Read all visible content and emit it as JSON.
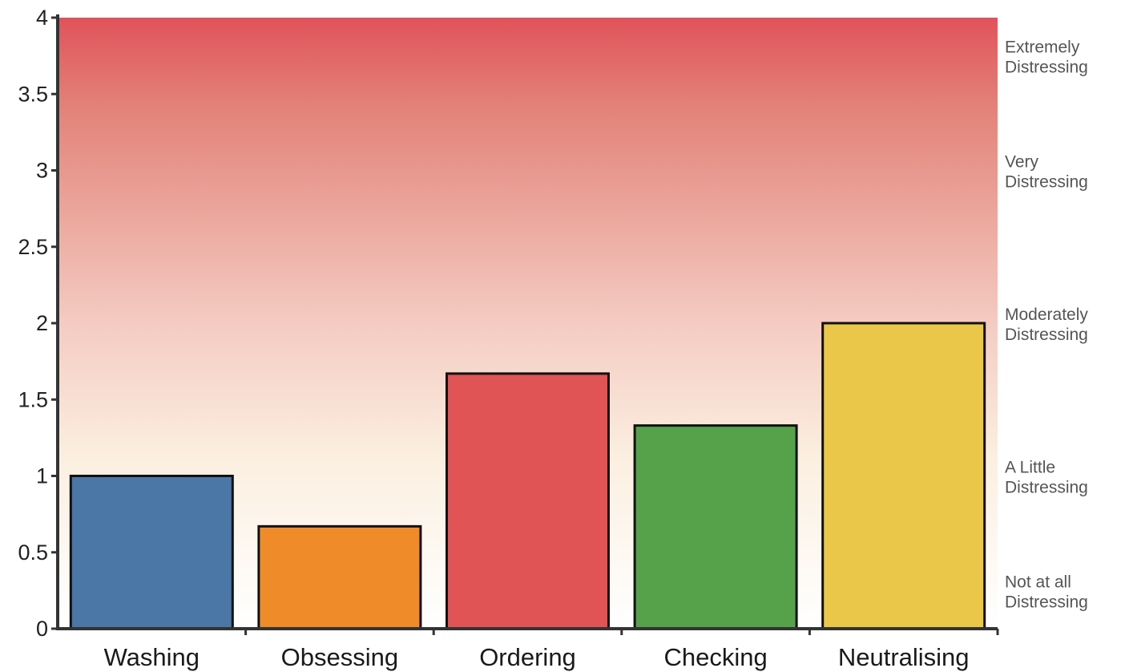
{
  "chart_data": {
    "type": "bar",
    "categories": [
      "Washing",
      "Obsessing",
      "Ordering",
      "Checking",
      "Neutralising"
    ],
    "values": [
      1,
      0.67,
      1.67,
      1.33,
      2
    ],
    "bar_colors": [
      "#4a77a6",
      "#ef8c29",
      "#e05455",
      "#55a24b",
      "#eac748"
    ],
    "ylim": [
      0,
      4
    ],
    "yticks": [
      "0",
      "0.5",
      "1",
      "1.5",
      "2",
      "2.5",
      "3",
      "3.5",
      "4"
    ],
    "grid": false,
    "background_gradient": [
      "#ffffff",
      "#fbefe0",
      "#f4cbc2",
      "#e38379",
      "#e0535a"
    ],
    "right_labels": [
      {
        "y": 0.25,
        "lines": [
          "Not at all",
          "Distressing"
        ]
      },
      {
        "y": 1.0,
        "lines": [
          "A Little",
          "Distressing"
        ]
      },
      {
        "y": 2.0,
        "lines": [
          "Moderately",
          "Distressing"
        ]
      },
      {
        "y": 3.0,
        "lines": [
          "Very",
          "Distressing"
        ]
      },
      {
        "y": 3.75,
        "lines": [
          "Extremely",
          "Distressing"
        ]
      }
    ]
  }
}
